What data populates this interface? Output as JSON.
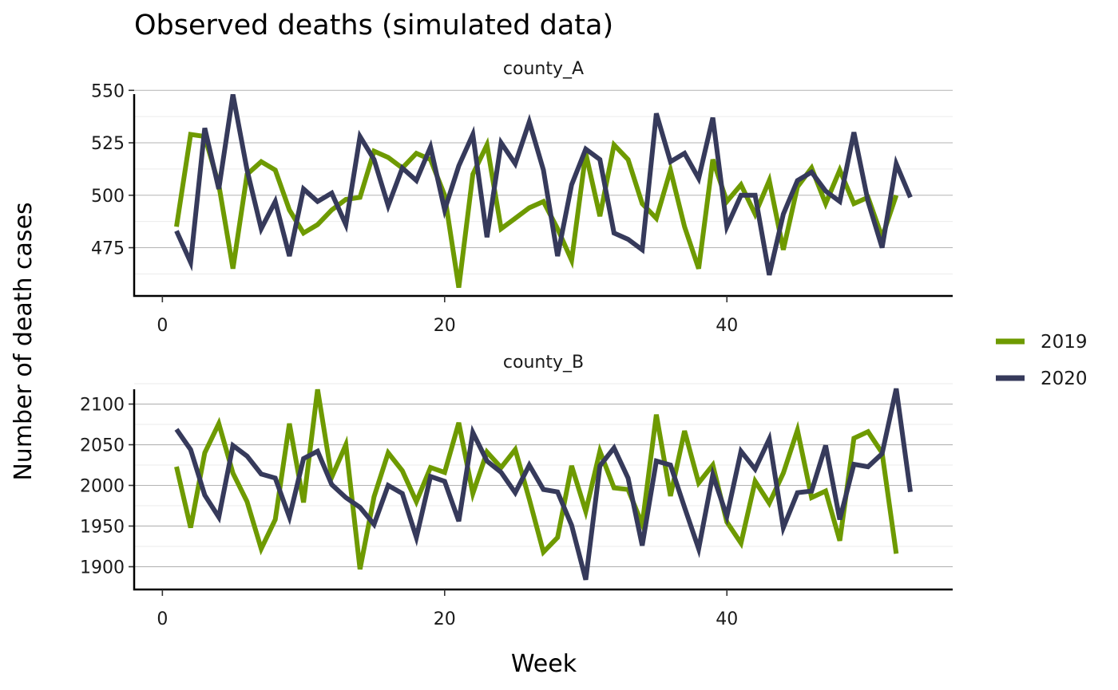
{
  "chart_data": {
    "type": "line",
    "title": "Observed deaths (simulated data)",
    "xlabel": "Week",
    "ylabel": "Number of death cases",
    "legend_position": "right",
    "colors": {
      "2019": "#6e9a00",
      "2020": "#363a5b"
    },
    "series_names": [
      "2019",
      "2020"
    ],
    "panels": [
      {
        "name": "county_A",
        "xlim": [
          -2,
          56
        ],
        "ylim": [
          452,
          552
        ],
        "x_ticks": [
          0,
          20,
          40
        ],
        "y_ticks": [
          475,
          500,
          525,
          550
        ],
        "y_minor": [
          462.5,
          487.5,
          512.5,
          537.5
        ],
        "series": [
          {
            "name": "2019",
            "x": [
              1,
              2,
              3,
              4,
              5,
              6,
              7,
              8,
              9,
              10,
              11,
              12,
              13,
              14,
              15,
              16,
              17,
              18,
              19,
              20,
              21,
              22,
              23,
              24,
              25,
              26,
              27,
              28,
              29,
              30,
              31,
              32,
              33,
              34,
              35,
              36,
              37,
              38,
              39,
              40,
              41,
              42,
              43,
              44,
              45,
              46,
              47,
              48,
              49,
              50,
              51,
              52
            ],
            "values": [
              485,
              529,
              528,
              505,
              465,
              510,
              516,
              512,
              493,
              482,
              486,
              493,
              498,
              499,
              521,
              518,
              513,
              520,
              517,
              500,
              456,
              510,
              524,
              484,
              489,
              494,
              497,
              484,
              469,
              520,
              490,
              524,
              517,
              496,
              489,
              512,
              485,
              465,
              517,
              497,
              505,
              491,
              507,
              474,
              504,
              513,
              496,
              512,
              496,
              499,
              480,
              500
            ]
          },
          {
            "name": "2020",
            "x": [
              1,
              2,
              3,
              4,
              5,
              6,
              7,
              8,
              9,
              10,
              11,
              12,
              13,
              14,
              15,
              16,
              17,
              18,
              19,
              20,
              21,
              22,
              23,
              24,
              25,
              26,
              27,
              28,
              29,
              30,
              31,
              32,
              33,
              34,
              35,
              36,
              37,
              38,
              39,
              40,
              41,
              42,
              43,
              44,
              45,
              46,
              47,
              48,
              49,
              50,
              51,
              52,
              53
            ],
            "values": [
              483,
              468,
              532,
              503,
              548,
              512,
              484,
              497,
              471,
              503,
              497,
              501,
              486,
              528,
              517,
              495,
              513,
              507,
              523,
              493,
              514,
              529,
              480,
              525,
              515,
              535,
              512,
              471,
              505,
              522,
              517,
              482,
              479,
              474,
              539,
              516,
              520,
              508,
              537,
              485,
              500,
              500,
              462,
              491,
              507,
              511,
              502,
              497,
              530,
              497,
              475,
              515,
              499
            ]
          }
        ]
      },
      {
        "name": "county_B",
        "xlim": [
          -2,
          56
        ],
        "ylim": [
          1872,
          2128
        ],
        "x_ticks": [
          0,
          20,
          40
        ],
        "y_ticks": [
          1900,
          1950,
          2000,
          2050,
          2100
        ],
        "y_minor": [
          1925,
          1975,
          2025,
          2075,
          2125
        ],
        "series": [
          {
            "name": "2019",
            "x": [
              1,
              2,
              3,
              4,
              5,
              6,
              7,
              8,
              9,
              10,
              11,
              12,
              13,
              14,
              15,
              16,
              17,
              18,
              19,
              20,
              21,
              22,
              23,
              24,
              25,
              26,
              27,
              28,
              29,
              30,
              31,
              32,
              33,
              34,
              35,
              36,
              37,
              38,
              39,
              40,
              41,
              42,
              43,
              44,
              45,
              46,
              47,
              48,
              49,
              50,
              51,
              52
            ],
            "values": [
              2023,
              1948,
              2040,
              2076,
              2015,
              1980,
              1922,
              1958,
              2076,
              1979,
              2118,
              2010,
              2050,
              1897,
              1986,
              2040,
              2018,
              1980,
              2022,
              2016,
              2077,
              1990,
              2041,
              2022,
              2044,
              1983,
              1918,
              1936,
              2024,
              1968,
              2042,
              1997,
              1995,
              1952,
              2087,
              1987,
              2067,
              2003,
              2025,
              1955,
              1929,
              2005,
              1978,
              2015,
              2068,
              1985,
              1993,
              1932,
              2058,
              2066,
              2040,
              1916
            ]
          },
          {
            "name": "2020",
            "x": [
              1,
              2,
              3,
              4,
              5,
              6,
              7,
              8,
              9,
              10,
              11,
              12,
              13,
              14,
              15,
              16,
              17,
              18,
              19,
              20,
              21,
              22,
              23,
              24,
              25,
              26,
              27,
              28,
              29,
              30,
              31,
              32,
              33,
              34,
              35,
              36,
              37,
              38,
              39,
              40,
              41,
              42,
              43,
              44,
              45,
              46,
              47,
              48,
              49,
              50,
              51,
              52,
              53
            ],
            "values": [
              2069,
              2044,
              1988,
              1961,
              2049,
              2036,
              2014,
              2009,
              1961,
              2033,
              2042,
              2001,
              1985,
              1973,
              1952,
              2000,
              1990,
              1936,
              2011,
              2005,
              1956,
              2065,
              2030,
              2016,
              1991,
              2025,
              1995,
              1992,
              1951,
              1884,
              2024,
              2046,
              2009,
              1926,
              2030,
              2025,
              1973,
              1922,
              2013,
              1962,
              2042,
              2020,
              2057,
              1948,
              1991,
              1993,
              2049,
              1958,
              2026,
              2023,
              2039,
              2119,
              1992
            ]
          }
        ]
      }
    ]
  }
}
